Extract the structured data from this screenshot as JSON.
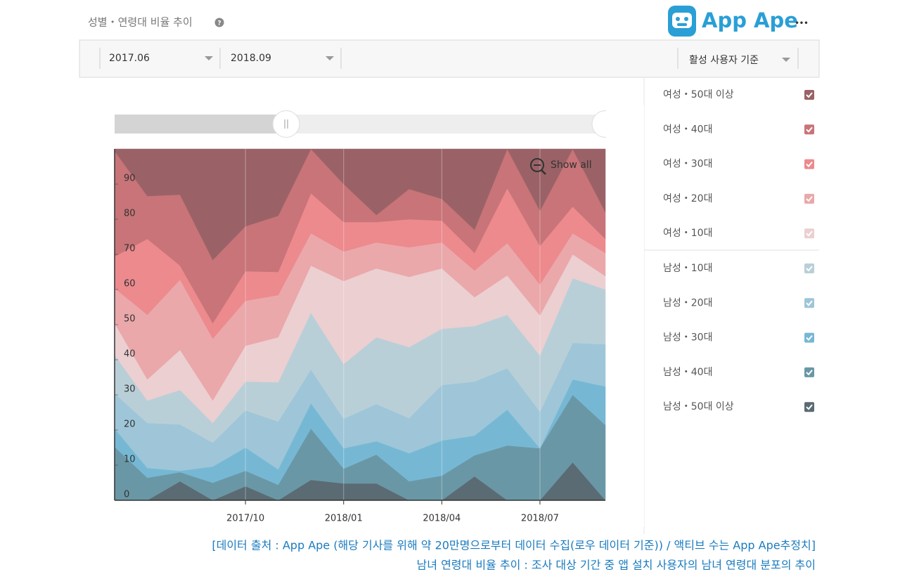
{
  "header": {
    "title": "성별・연령대 비율 추이",
    "logo": "App Ape",
    "menu": "•••"
  },
  "toolbar": {
    "start": "2017.06",
    "end": "2018.09",
    "basis": "활성 사용자 기준"
  },
  "chart_data": {
    "type": "area",
    "stacked": true,
    "zoom_button": "Show all",
    "categories": [
      null,
      null,
      null,
      null,
      "2017/10",
      null,
      null,
      "2018/01",
      null,
      null,
      "2018/04",
      null,
      null,
      "2018/07",
      null,
      null
    ],
    "ylim": [
      0,
      100
    ],
    "yticks": [
      0,
      10,
      20,
      30,
      40,
      50,
      60,
      70,
      80,
      90
    ],
    "series": [
      {
        "name": "여성・50대 이상",
        "color": "#9a6266",
        "values": [
          0.6,
          13.4,
          13,
          31.6,
          22,
          19,
          0,
          10,
          18.8,
          11.4,
          14.2,
          23,
          0,
          17.6,
          0,
          18
        ]
      },
      {
        "name": "여성・40대",
        "color": "#c87478",
        "values": [
          30,
          12.2,
          20.2,
          18,
          12.8,
          16,
          12.6,
          10.8,
          2,
          8.6,
          6.2,
          6.6,
          11.2,
          10,
          16.4,
          7.6
        ]
      },
      {
        "name": "여성・30대",
        "color": "#ec8a8e",
        "values": [
          9,
          21.6,
          4,
          4.4,
          8.4,
          6.6,
          11.4,
          8.4,
          5.8,
          8,
          6.2,
          5,
          15.6,
          11,
          7.6,
          4
        ]
      },
      {
        "name": "여성・20대",
        "color": "#eaa8ab",
        "values": [
          10,
          18.4,
          20,
          17.6,
          12.8,
          12,
          9.2,
          8.4,
          7.4,
          8.4,
          7.4,
          7.6,
          9.2,
          8.8,
          6,
          6.6
        ]
      },
      {
        "name": "여성・10대",
        "color": "#eccfd1",
        "values": [
          9,
          6,
          11.4,
          6.4,
          10.2,
          12.8,
          13.4,
          23.6,
          19.6,
          20,
          17.2,
          8.2,
          11.2,
          11.4,
          6.8,
          3.8
        ]
      },
      {
        "name": "남성・10대",
        "color": "#b9cfd8",
        "values": [
          11,
          6.4,
          9.8,
          5.6,
          8.2,
          11.2,
          16.2,
          15.6,
          19,
          20.2,
          16,
          15.8,
          15.2,
          16,
          18.4,
          15.6
        ]
      },
      {
        "name": "남성・20대",
        "color": "#9ec6d8",
        "values": [
          10,
          12.8,
          13.2,
          6.8,
          10.6,
          13.6,
          9.6,
          8.4,
          10.6,
          10,
          15.8,
          15.4,
          11.8,
          10.4,
          10.4,
          12
        ]
      },
      {
        "name": "남성・30대",
        "color": "#76b8d4",
        "values": [
          5.2,
          2.8,
          0.4,
          4.6,
          6.6,
          4.4,
          7.2,
          5.8,
          3.8,
          8,
          10,
          5.6,
          10.2,
          0,
          4.4,
          11
        ]
      },
      {
        "name": "남성・40대",
        "color": "#6a97a6",
        "values": [
          15.2,
          6.4,
          2.6,
          5,
          4.4,
          4.4,
          14.6,
          4.2,
          8.2,
          5.4,
          7,
          6,
          15.6,
          14.8,
          19.2,
          21.4
        ]
      },
      {
        "name": "남성・50대 이상",
        "color": "#5b6b73",
        "values": [
          0,
          0,
          5.4,
          0,
          4,
          0,
          5.8,
          4.8,
          4.8,
          0,
          0,
          6.8,
          0,
          0,
          10.8,
          0
        ]
      }
    ]
  },
  "caption": [
    "[데이터 출처 : App Ape (해당 기사를 위해 약 20만명으로부터 데이터 수집(로우 데이터 기준)) / 액티브 수는 App Ape추정치]",
    "남녀 연령대 비율 추이 : 조사 대상 기간 중 앱 설치 사용자의 남녀 연령대 분포의 추이"
  ]
}
